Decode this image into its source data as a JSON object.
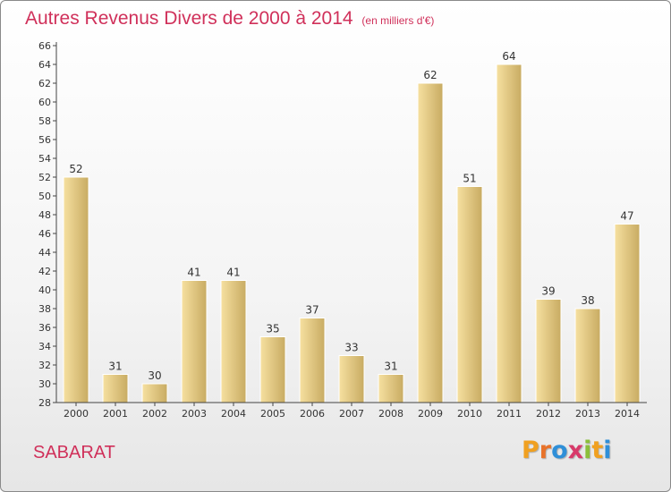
{
  "title": "Autres Revenus Divers de 2000 à 2014",
  "subtitle": "(en milliers d'€)",
  "commune": "SABARAT",
  "brand": {
    "letters": [
      "P",
      "r",
      "o",
      "x",
      "i",
      "t",
      "i"
    ],
    "colors": [
      "#f0a020",
      "#e8722a",
      "#2f8fd8",
      "#d83a6a",
      "#8bbf3a",
      "#f0a020",
      "#2f8fd8"
    ]
  },
  "colors": {
    "title": "#d0305a",
    "bar_light": "#f6e0a0",
    "bar_dark": "#c8ab62",
    "axis": "#444444"
  },
  "chart_data": {
    "type": "bar",
    "title": "Autres Revenus Divers de 2000 à 2014",
    "subtitle": "(en milliers d'€)",
    "categories": [
      "2000",
      "2001",
      "2002",
      "2003",
      "2004",
      "2005",
      "2006",
      "2007",
      "2008",
      "2009",
      "2010",
      "2011",
      "2012",
      "2013",
      "2014"
    ],
    "values": [
      52,
      31,
      30,
      41,
      41,
      35,
      37,
      33,
      31,
      62,
      51,
      64,
      39,
      38,
      47
    ],
    "ylim": [
      28,
      66
    ],
    "yticks": [
      28,
      30,
      32,
      34,
      36,
      38,
      40,
      42,
      44,
      46,
      48,
      50,
      52,
      54,
      56,
      58,
      60,
      62,
      64,
      66
    ],
    "grid": false,
    "legend": "none"
  }
}
